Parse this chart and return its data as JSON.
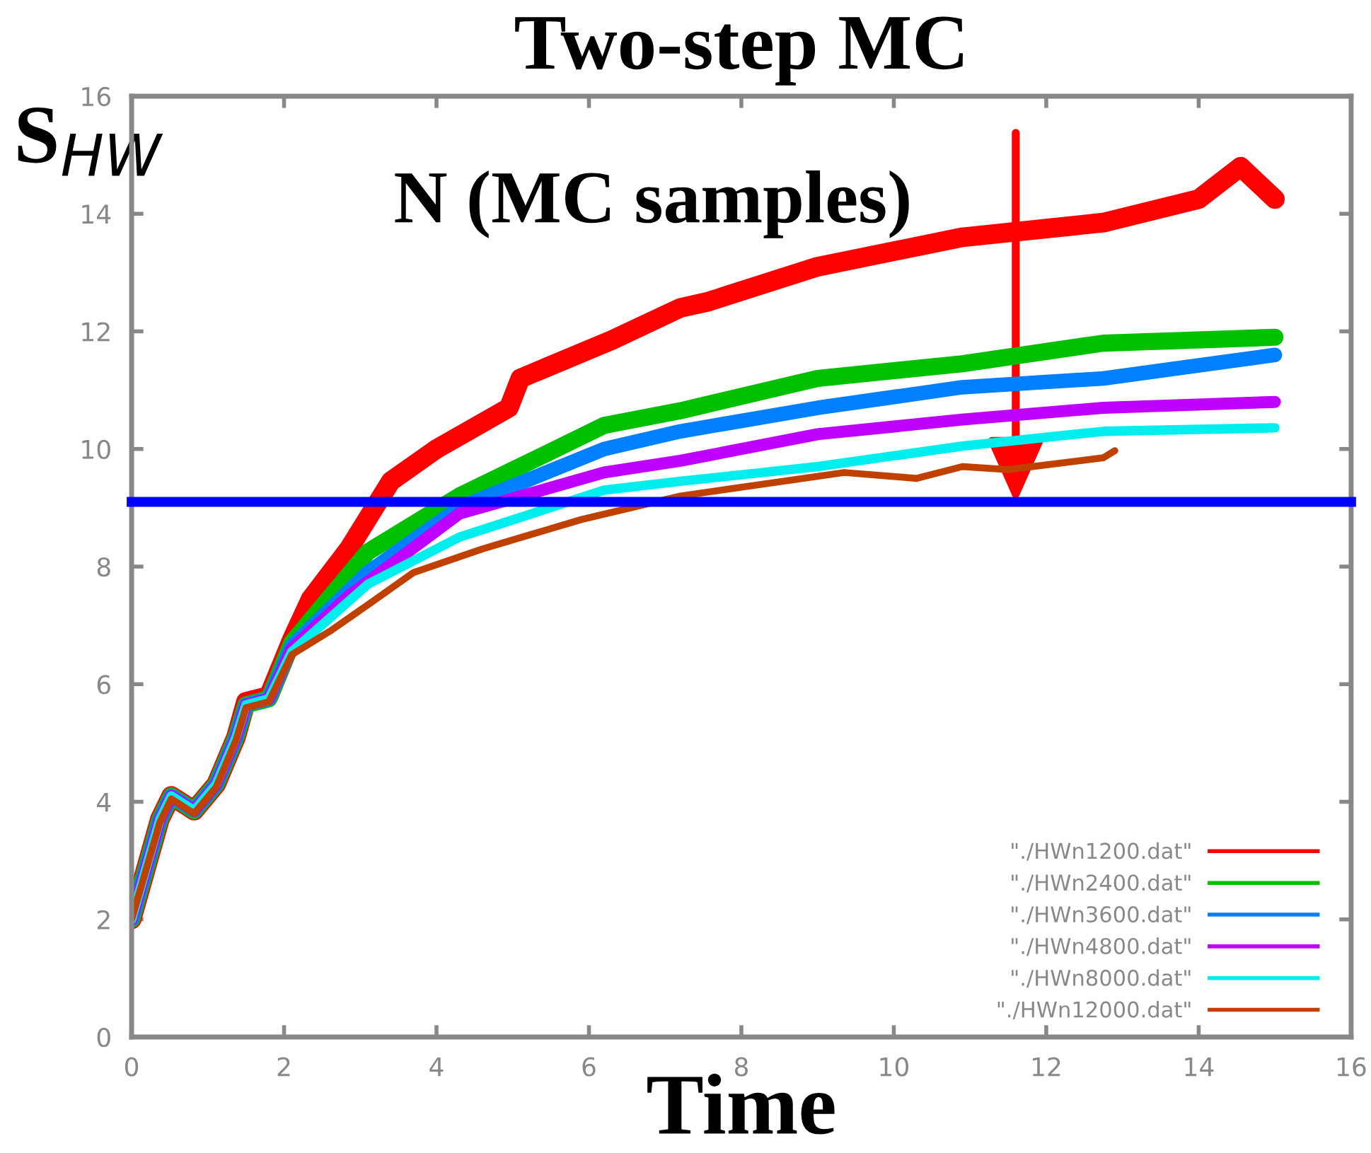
{
  "chart_data": {
    "type": "line",
    "title": "Two-step MC",
    "xlabel": "Time",
    "ylabel": "S$_{HW}$",
    "xlim": [
      0,
      16
    ],
    "ylim": [
      0,
      16
    ],
    "xticks": [
      0,
      2,
      4,
      6,
      8,
      10,
      12,
      14,
      16
    ],
    "yticks": [
      0,
      2,
      4,
      6,
      8,
      10,
      12,
      14,
      16
    ],
    "grid": false,
    "legend": "bottom right",
    "line_style": "solid",
    "ref_lines": [
      {
        "axis": "y",
        "value": 9.1,
        "color": "#0000ff"
      }
    ],
    "annotations": [
      "N (MC samples)"
    ],
    "series": [
      {
        "name": "\"./HWn1200.dat\"",
        "color": "#ff0000",
        "x": [
          0,
          0.37,
          0.52,
          0.82,
          1.11,
          1.37,
          1.5,
          1.8,
          2.1,
          2.35,
          2.85,
          3.4,
          4.0,
          4.95,
          5.1,
          6.3,
          7.2,
          7.55,
          9.0,
          10.9,
          12.75,
          14.0,
          14.55,
          15.0
        ],
        "values": [
          2.0,
          3.7,
          4.1,
          3.85,
          4.3,
          5.1,
          5.7,
          5.8,
          6.75,
          7.45,
          8.3,
          9.45,
          10.0,
          10.7,
          11.2,
          11.85,
          12.4,
          12.5,
          13.1,
          13.6,
          13.85,
          14.25,
          14.8,
          14.25
        ]
      },
      {
        "name": "\"./HWn2400.dat\"",
        "color": "#00c000",
        "x": [
          0,
          0.37,
          0.52,
          0.82,
          1.11,
          1.37,
          1.5,
          1.8,
          2.1,
          3.1,
          4.3,
          6.2,
          7.2,
          9.0,
          10.9,
          12.75,
          15.0
        ],
        "values": [
          2.0,
          3.7,
          4.1,
          3.85,
          4.3,
          5.1,
          5.65,
          5.75,
          6.7,
          8.25,
          9.2,
          10.4,
          10.65,
          11.2,
          11.45,
          11.8,
          11.9
        ]
      },
      {
        "name": "\"./HWn3600.dat\"",
        "color": "#0080ff",
        "x": [
          0,
          0.37,
          0.52,
          0.82,
          1.11,
          1.37,
          1.5,
          1.8,
          2.1,
          3.1,
          4.3,
          6.2,
          7.2,
          9.0,
          10.9,
          12.75,
          15.0
        ],
        "values": [
          2.0,
          3.7,
          4.1,
          3.85,
          4.3,
          5.1,
          5.65,
          5.75,
          6.65,
          7.9,
          9.0,
          10.0,
          10.3,
          10.7,
          11.05,
          11.2,
          11.6
        ]
      },
      {
        "name": "\"./HWn4800.dat\"",
        "color": "#c000ff",
        "x": [
          0,
          0.37,
          0.52,
          0.82,
          1.11,
          1.37,
          1.5,
          1.8,
          2.1,
          2.85,
          4.3,
          6.2,
          7.2,
          9.0,
          10.9,
          12.75,
          15.0
        ],
        "values": [
          2.0,
          3.7,
          4.1,
          3.85,
          4.3,
          5.1,
          5.65,
          5.75,
          6.6,
          7.5,
          8.9,
          9.6,
          9.8,
          10.25,
          10.5,
          10.7,
          10.8
        ]
      },
      {
        "name": "\"./HWn8000.dat\"",
        "color": "#00eeee",
        "x": [
          0,
          0.37,
          0.52,
          0.82,
          1.11,
          1.37,
          1.5,
          1.8,
          2.1,
          3.1,
          4.3,
          6.2,
          7.2,
          9.0,
          10.9,
          12.75,
          15.0
        ],
        "values": [
          2.0,
          3.7,
          4.1,
          3.85,
          4.3,
          5.1,
          5.65,
          5.75,
          6.55,
          7.7,
          8.5,
          9.3,
          9.45,
          9.7,
          10.05,
          10.3,
          10.36
        ]
      },
      {
        "name": "\"./HWn12000.dat\"",
        "color": "#c04000",
        "x": [
          0,
          0.37,
          0.52,
          0.82,
          1.11,
          1.37,
          1.5,
          1.8,
          2.1,
          2.6,
          3.1,
          3.7,
          4.6,
          5.9,
          7.2,
          9.35,
          10.3,
          10.9,
          11.5,
          12.75,
          12.9
        ],
        "values": [
          2.0,
          3.65,
          4.05,
          3.8,
          4.25,
          5.05,
          5.6,
          5.7,
          6.5,
          6.9,
          7.35,
          7.9,
          8.3,
          8.8,
          9.2,
          9.6,
          9.5,
          9.7,
          9.65,
          9.85,
          9.97
        ]
      }
    ]
  }
}
